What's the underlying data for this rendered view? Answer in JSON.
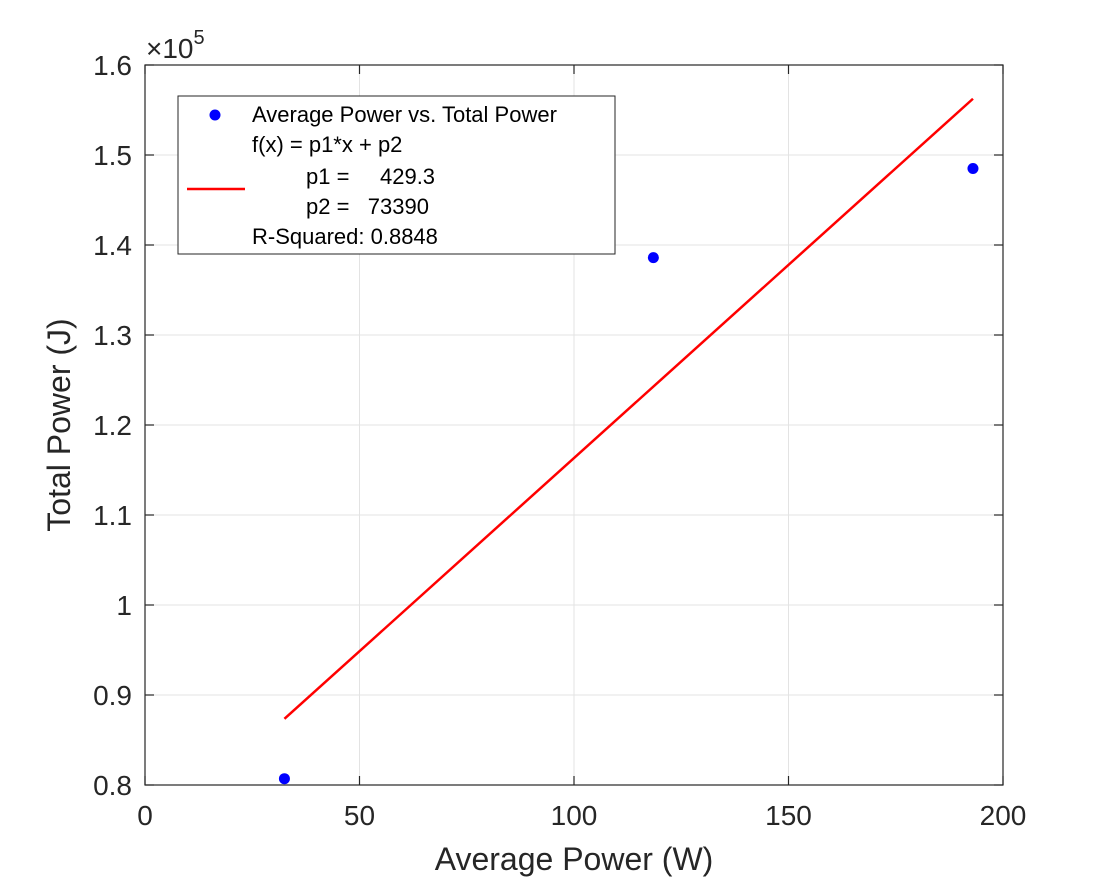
{
  "chart_data": {
    "type": "scatter",
    "xlabel": "Average Power (W)",
    "ylabel": "Total Power (J)",
    "xlim": [
      0,
      200
    ],
    "ylim": [
      0.8,
      1.6
    ],
    "y_exponent_label": "×10",
    "y_exponent_power": "5",
    "xticks": [
      0,
      50,
      100,
      150,
      200
    ],
    "xtick_labels": [
      "0",
      "50",
      "100",
      "150",
      "200"
    ],
    "yticks": [
      0.8,
      0.9,
      1.0,
      1.1,
      1.2,
      1.3,
      1.4,
      1.5,
      1.6
    ],
    "ytick_labels": [
      "0.8",
      "0.9",
      "1",
      "1.1",
      "1.2",
      "1.3",
      "1.4",
      "1.5",
      "1.6"
    ],
    "grid": true,
    "legend_position": "top-left",
    "points": {
      "name": "Average Power vs. Total Power",
      "color": "#0000ff",
      "x": [
        32.5,
        118.5,
        193
      ],
      "y": [
        0.807,
        1.386,
        1.485
      ]
    },
    "fit_line": {
      "color": "#ff0000",
      "x": [
        32.5,
        193
      ],
      "y": [
        0.8735,
        1.5625
      ]
    },
    "legend": {
      "series_label": "Average Power vs. Total Power",
      "fit_lines": [
        "f(x) = p1*x + p2",
        "p1 =     429.3",
        "p2 =   73390",
        "R-Squared: 0.8848"
      ]
    }
  }
}
